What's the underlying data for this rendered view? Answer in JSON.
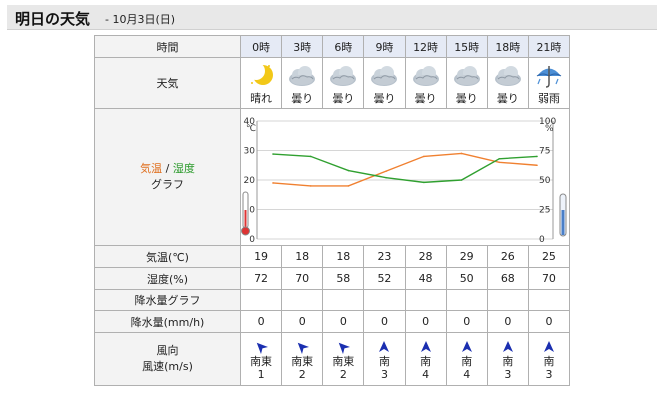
{
  "header": {
    "title": "明日の天気",
    "subtitle": "- 10月3日(日)"
  },
  "table": {
    "hour_label": "時間",
    "hours": [
      "0時",
      "3時",
      "6時",
      "9時",
      "12時",
      "15時",
      "18時",
      "21時"
    ],
    "weather_label": "天気",
    "weather": [
      {
        "icon": "crescent-moon-icon",
        "text": "晴れ"
      },
      {
        "icon": "cloud-icon",
        "text": "曇り"
      },
      {
        "icon": "cloud-icon",
        "text": "曇り"
      },
      {
        "icon": "cloud-icon",
        "text": "曇り"
      },
      {
        "icon": "cloud-icon",
        "text": "曇り"
      },
      {
        "icon": "cloud-icon",
        "text": "曇り"
      },
      {
        "icon": "cloud-icon",
        "text": "曇り"
      },
      {
        "icon": "umbrella-icon",
        "text": "弱雨"
      }
    ],
    "graph_label": {
      "temp": "気温",
      "sep": " / ",
      "hum": "湿度",
      "graph": "グラフ"
    },
    "temp_label": "気温(℃)",
    "temps": [
      "19",
      "18",
      "18",
      "23",
      "28",
      "29",
      "26",
      "25"
    ],
    "hum_label": "湿度(%)",
    "hums": [
      "72",
      "70",
      "58",
      "52",
      "48",
      "50",
      "68",
      "70"
    ],
    "precip_graph_label": "降水量グラフ",
    "precip_label": "降水量(mm/h)",
    "precip": [
      "0",
      "0",
      "0",
      "0",
      "0",
      "0",
      "0",
      "0"
    ],
    "wind_label": {
      "line1": "風向",
      "line2": "風速(m/s)"
    },
    "wind": [
      {
        "dir": "南東",
        "speed": "1",
        "arrow": "northwest"
      },
      {
        "dir": "南東",
        "speed": "2",
        "arrow": "northwest"
      },
      {
        "dir": "南東",
        "speed": "2",
        "arrow": "northwest"
      },
      {
        "dir": "南",
        "speed": "3",
        "arrow": "north"
      },
      {
        "dir": "南",
        "speed": "4",
        "arrow": "north"
      },
      {
        "dir": "南",
        "speed": "4",
        "arrow": "north"
      },
      {
        "dir": "南",
        "speed": "3",
        "arrow": "north"
      },
      {
        "dir": "南",
        "speed": "3",
        "arrow": "north"
      }
    ]
  },
  "chart_data": {
    "type": "line",
    "x": [
      "0時",
      "3時",
      "6時",
      "9時",
      "12時",
      "15時",
      "18時",
      "21時"
    ],
    "series": [
      {
        "name": "気温",
        "unit": "℃",
        "values": [
          19,
          18,
          18,
          23,
          28,
          29,
          26,
          25
        ],
        "color": "#f08030"
      },
      {
        "name": "湿度",
        "unit": "%",
        "values": [
          72,
          70,
          58,
          52,
          48,
          50,
          68,
          70
        ],
        "color": "#30a030"
      }
    ],
    "left_axis": {
      "unit": "℃",
      "ylim": [
        0,
        40
      ],
      "ticks": [
        "0",
        "10",
        "20",
        "30",
        "40"
      ]
    },
    "right_axis": {
      "unit": "%",
      "ylim": [
        0,
        100
      ],
      "ticks": [
        "0",
        "25",
        "50",
        "75",
        "100"
      ]
    },
    "grid": true
  },
  "colors": {
    "hour_bg": "#e5eaf5",
    "arrow": "#1b2fb0"
  }
}
